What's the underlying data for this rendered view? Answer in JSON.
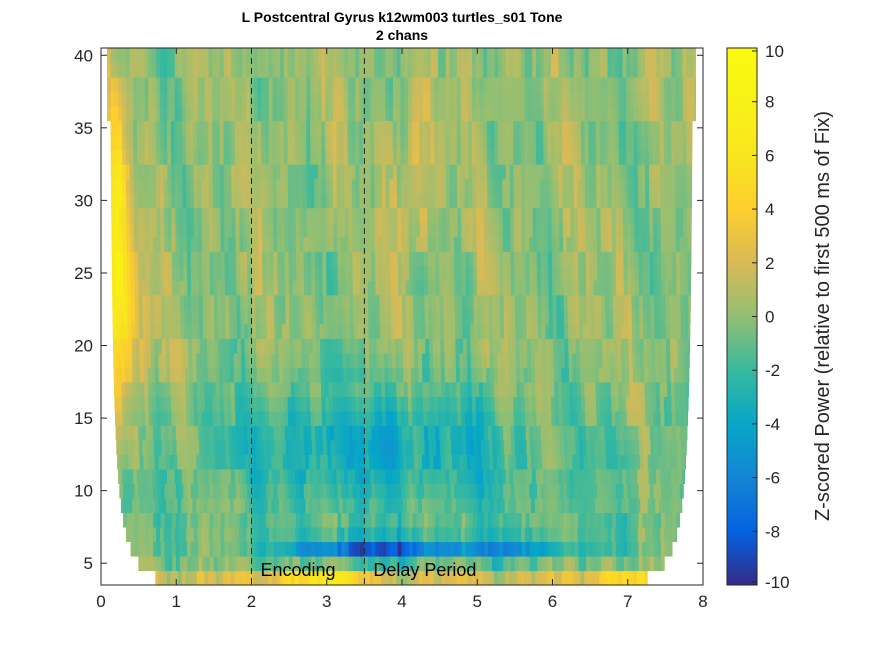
{
  "chart_data": {
    "type": "heatmap",
    "title": "L Postcentral Gyrus k12wm003 turtles_s01 Tone",
    "subtitle": "2 chans",
    "xlabel": "",
    "ylabel": "",
    "xlim": [
      0,
      8
    ],
    "ylim": [
      3.5,
      40.5
    ],
    "x_ticks": [
      "0",
      "1",
      "2",
      "3",
      "4",
      "5",
      "6",
      "7",
      "8"
    ],
    "y_ticks": [
      "5",
      "10",
      "15",
      "20",
      "25",
      "30",
      "35",
      "40"
    ],
    "colorbar": {
      "label": "Z-scored Power (relative to first 500 ms of Fix)",
      "range": [
        -10,
        10
      ],
      "ticks": [
        "10",
        "8",
        "6",
        "4",
        "2",
        "0",
        "-2",
        "-4",
        "-6",
        "-8",
        "-10"
      ],
      "colormap": "parula"
    },
    "event_lines": [
      {
        "x": 2.0,
        "label": "Encoding"
      },
      {
        "x": 3.5,
        "label": "Delay Period"
      }
    ],
    "frequencies": [
      4,
      5,
      6,
      7,
      8,
      9,
      10,
      11,
      12,
      13,
      14,
      15,
      16,
      17,
      18,
      19,
      20,
      21,
      22,
      23,
      24,
      25,
      26,
      27,
      28,
      29,
      30,
      31,
      32,
      33,
      34,
      35,
      36,
      37,
      38,
      39,
      40
    ],
    "time_range": [
      0,
      8
    ],
    "grid": false
  }
}
